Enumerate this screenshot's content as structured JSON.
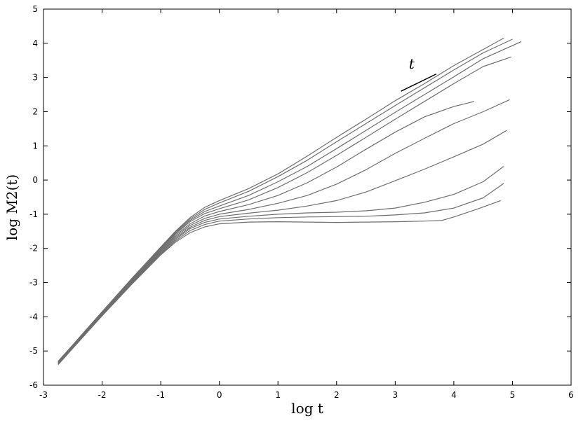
{
  "chart_data": {
    "type": "line",
    "xlabel": "log t",
    "ylabel": "log M2(t)",
    "xlim": [
      -3,
      6
    ],
    "ylim": [
      -6,
      5
    ],
    "grid": false,
    "legend": "none",
    "x_ticks": [
      "-3",
      "-2",
      "-1",
      "0",
      "1",
      "2",
      "3",
      "4",
      "5",
      "6"
    ],
    "y_ticks": [
      "-6",
      "-5",
      "-4",
      "-3",
      "-2",
      "-1",
      "0",
      "1",
      "2",
      "3",
      "4",
      "5"
    ],
    "slope_indicator": {
      "label": "t",
      "x": [
        3.1,
        3.7
      ],
      "y": [
        2.6,
        3.1
      ]
    },
    "series": [
      {
        "points": [
          [
            -2.75,
            -5.3
          ],
          [
            -2.5,
            -4.82
          ],
          [
            -2,
            -3.85
          ],
          [
            -1.5,
            -2.89
          ],
          [
            -1,
            -1.96
          ],
          [
            -0.75,
            -1.5
          ],
          [
            -0.5,
            -1.1
          ],
          [
            -0.25,
            -0.8
          ],
          [
            0,
            -0.6
          ],
          [
            0.5,
            -0.25
          ],
          [
            1,
            0.18
          ],
          [
            1.5,
            0.7
          ],
          [
            2,
            1.25
          ],
          [
            2.5,
            1.78
          ],
          [
            3,
            2.32
          ],
          [
            3.5,
            2.82
          ],
          [
            4,
            3.35
          ],
          [
            4.5,
            3.82
          ],
          [
            4.85,
            4.15
          ]
        ]
      },
      {
        "points": [
          [
            -2.75,
            -5.32
          ],
          [
            -2.5,
            -4.84
          ],
          [
            -2,
            -3.87
          ],
          [
            -1.5,
            -2.91
          ],
          [
            -1,
            -1.98
          ],
          [
            -0.75,
            -1.52
          ],
          [
            -0.5,
            -1.14
          ],
          [
            -0.25,
            -0.86
          ],
          [
            0,
            -0.67
          ],
          [
            0.5,
            -0.33
          ],
          [
            1,
            0.1
          ],
          [
            1.5,
            0.58
          ],
          [
            2,
            1.12
          ],
          [
            2.5,
            1.65
          ],
          [
            3,
            2.18
          ],
          [
            3.5,
            2.7
          ],
          [
            4,
            3.22
          ],
          [
            4.5,
            3.72
          ],
          [
            5,
            4.12
          ]
        ]
      },
      {
        "points": [
          [
            -2.75,
            -5.33
          ],
          [
            -2.5,
            -4.85
          ],
          [
            -2,
            -3.88
          ],
          [
            -1.5,
            -2.92
          ],
          [
            -1,
            -2.0
          ],
          [
            -0.75,
            -1.55
          ],
          [
            -0.5,
            -1.18
          ],
          [
            -0.25,
            -0.92
          ],
          [
            0,
            -0.76
          ],
          [
            0.5,
            -0.45
          ],
          [
            1,
            -0.05
          ],
          [
            1.5,
            0.4
          ],
          [
            2,
            0.92
          ],
          [
            2.5,
            1.45
          ],
          [
            3,
            1.98
          ],
          [
            3.5,
            2.5
          ],
          [
            4,
            3.02
          ],
          [
            4.5,
            3.55
          ],
          [
            5.15,
            4.05
          ]
        ]
      },
      {
        "points": [
          [
            -2.75,
            -5.34
          ],
          [
            -2.5,
            -4.86
          ],
          [
            -2,
            -3.9
          ],
          [
            -1.5,
            -2.94
          ],
          [
            -1,
            -2.02
          ],
          [
            -0.75,
            -1.58
          ],
          [
            -0.5,
            -1.22
          ],
          [
            -0.25,
            -0.98
          ],
          [
            0,
            -0.84
          ],
          [
            0.5,
            -0.58
          ],
          [
            1,
            -0.22
          ],
          [
            1.5,
            0.22
          ],
          [
            2,
            0.72
          ],
          [
            2.5,
            1.25
          ],
          [
            3,
            1.78
          ],
          [
            3.5,
            2.3
          ],
          [
            4,
            2.82
          ],
          [
            4.5,
            3.32
          ],
          [
            4.98,
            3.6
          ]
        ]
      },
      {
        "points": [
          [
            -2.75,
            -5.35
          ],
          [
            -2.5,
            -4.87
          ],
          [
            -2,
            -3.91
          ],
          [
            -1.5,
            -2.96
          ],
          [
            -1,
            -2.05
          ],
          [
            -0.75,
            -1.62
          ],
          [
            -0.5,
            -1.28
          ],
          [
            -0.25,
            -1.05
          ],
          [
            0,
            -0.92
          ],
          [
            0.5,
            -0.72
          ],
          [
            1,
            -0.45
          ],
          [
            1.5,
            -0.08
          ],
          [
            2,
            0.38
          ],
          [
            2.5,
            0.9
          ],
          [
            3,
            1.4
          ],
          [
            3.5,
            1.85
          ],
          [
            4,
            2.15
          ],
          [
            4.35,
            2.3
          ]
        ]
      },
      {
        "points": [
          [
            -2.75,
            -5.36
          ],
          [
            -2.5,
            -4.88
          ],
          [
            -2,
            -3.92
          ],
          [
            -1.5,
            -2.98
          ],
          [
            -1,
            -2.08
          ],
          [
            -0.75,
            -1.66
          ],
          [
            -0.5,
            -1.33
          ],
          [
            -0.25,
            -1.12
          ],
          [
            0,
            -1.0
          ],
          [
            0.5,
            -0.86
          ],
          [
            1,
            -0.68
          ],
          [
            1.5,
            -0.45
          ],
          [
            2,
            -0.12
          ],
          [
            2.5,
            0.3
          ],
          [
            3,
            0.78
          ],
          [
            3.5,
            1.22
          ],
          [
            4,
            1.65
          ],
          [
            4.5,
            2.0
          ],
          [
            4.95,
            2.35
          ]
        ]
      },
      {
        "points": [
          [
            -2.75,
            -5.37
          ],
          [
            -2.5,
            -4.89
          ],
          [
            -2,
            -3.93
          ],
          [
            -1.5,
            -3.0
          ],
          [
            -1,
            -2.1
          ],
          [
            -0.75,
            -1.7
          ],
          [
            -0.5,
            -1.38
          ],
          [
            -0.25,
            -1.18
          ],
          [
            0,
            -1.07
          ],
          [
            0.5,
            -0.97
          ],
          [
            1,
            -0.88
          ],
          [
            1.5,
            -0.76
          ],
          [
            2,
            -0.6
          ],
          [
            2.5,
            -0.35
          ],
          [
            3,
            -0.02
          ],
          [
            3.5,
            0.32
          ],
          [
            4,
            0.68
          ],
          [
            4.5,
            1.05
          ],
          [
            4.9,
            1.45
          ]
        ]
      },
      {
        "points": [
          [
            -2.75,
            -5.38
          ],
          [
            -2.5,
            -4.9
          ],
          [
            -2,
            -3.95
          ],
          [
            -1.5,
            -3.02
          ],
          [
            -1,
            -2.13
          ],
          [
            -0.75,
            -1.74
          ],
          [
            -0.5,
            -1.42
          ],
          [
            -0.25,
            -1.24
          ],
          [
            0,
            -1.14
          ],
          [
            0.5,
            -1.06
          ],
          [
            1,
            -1.0
          ],
          [
            1.5,
            -0.96
          ],
          [
            2,
            -0.94
          ],
          [
            2.5,
            -0.9
          ],
          [
            3,
            -0.82
          ],
          [
            3.5,
            -0.65
          ],
          [
            4,
            -0.42
          ],
          [
            4.5,
            -0.05
          ],
          [
            4.85,
            0.4
          ]
        ]
      },
      {
        "points": [
          [
            -2.75,
            -5.39
          ],
          [
            -2.5,
            -4.91
          ],
          [
            -2,
            -3.96
          ],
          [
            -1.5,
            -3.04
          ],
          [
            -1,
            -2.16
          ],
          [
            -0.75,
            -1.78
          ],
          [
            -0.5,
            -1.48
          ],
          [
            -0.25,
            -1.3
          ],
          [
            0,
            -1.2
          ],
          [
            0.5,
            -1.14
          ],
          [
            1,
            -1.1
          ],
          [
            1.5,
            -1.08
          ],
          [
            2,
            -1.07
          ],
          [
            2.5,
            -1.06
          ],
          [
            3,
            -1.02
          ],
          [
            3.5,
            -0.96
          ],
          [
            4,
            -0.82
          ],
          [
            4.5,
            -0.52
          ],
          [
            4.85,
            -0.1
          ]
        ]
      },
      {
        "points": [
          [
            -2.75,
            -5.4
          ],
          [
            -2.5,
            -4.92
          ],
          [
            -2,
            -3.97
          ],
          [
            -1.5,
            -3.06
          ],
          [
            -1,
            -2.19
          ],
          [
            -0.75,
            -1.82
          ],
          [
            -0.5,
            -1.54
          ],
          [
            -0.25,
            -1.37
          ],
          [
            0,
            -1.28
          ],
          [
            0.5,
            -1.23
          ],
          [
            1,
            -1.22
          ],
          [
            1.5,
            -1.23
          ],
          [
            2,
            -1.24
          ],
          [
            2.5,
            -1.23
          ],
          [
            3,
            -1.22
          ],
          [
            3.5,
            -1.2
          ],
          [
            3.8,
            -1.18
          ],
          [
            4,
            -1.08
          ],
          [
            4.4,
            -0.85
          ],
          [
            4.8,
            -0.6
          ]
        ]
      }
    ]
  }
}
